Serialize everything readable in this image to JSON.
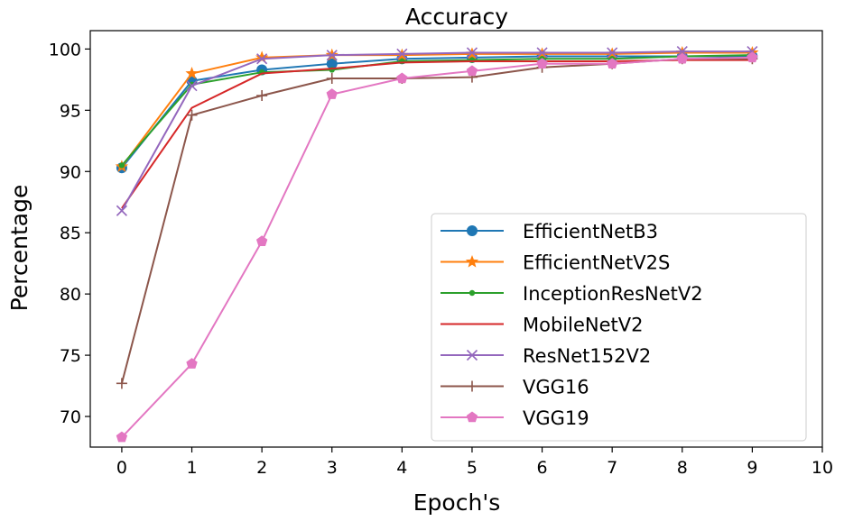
{
  "chart_data": {
    "type": "line",
    "title": "Accuracy",
    "xlabel": "Epoch's",
    "ylabel": "Percentage",
    "xlim": [
      -0.45,
      10
    ],
    "ylim": [
      67.5,
      101.5
    ],
    "x": [
      0,
      1,
      2,
      3,
      4,
      5,
      6,
      7,
      8,
      9
    ],
    "xticks": [
      0,
      1,
      2,
      3,
      4,
      5,
      6,
      7,
      8,
      9,
      10
    ],
    "yticks": [
      70,
      75,
      80,
      85,
      90,
      95,
      100
    ],
    "grid": false,
    "legend_position": "lower-right",
    "series": [
      {
        "name": "EfficientNetB3",
        "color": "#1f77b4",
        "marker": "circle",
        "values": [
          90.3,
          97.4,
          98.3,
          98.8,
          99.2,
          99.3,
          99.4,
          99.4,
          99.4,
          99.4
        ]
      },
      {
        "name": "EfficientNetV2S",
        "color": "#ff7f0e",
        "marker": "star",
        "values": [
          90.4,
          98.0,
          99.3,
          99.5,
          99.5,
          99.6,
          99.6,
          99.6,
          99.7,
          99.7
        ]
      },
      {
        "name": "InceptionResNetV2",
        "color": "#2ca02c",
        "marker": "point",
        "values": [
          90.5,
          97.1,
          98.1,
          98.3,
          99.0,
          99.1,
          99.2,
          99.2,
          99.4,
          99.5
        ]
      },
      {
        "name": "MobileNetV2",
        "color": "#d62728",
        "marker": "none",
        "values": [
          87.0,
          95.2,
          98.0,
          98.4,
          98.9,
          99.0,
          99.0,
          99.0,
          99.1,
          99.1
        ]
      },
      {
        "name": "ResNet152V2",
        "color": "#9467bd",
        "marker": "x",
        "values": [
          86.8,
          97.0,
          99.2,
          99.5,
          99.6,
          99.7,
          99.7,
          99.7,
          99.8,
          99.8
        ]
      },
      {
        "name": "VGG16",
        "color": "#8c564b",
        "marker": "plus",
        "values": [
          72.7,
          94.6,
          96.2,
          97.6,
          97.6,
          97.7,
          98.5,
          98.8,
          99.2,
          99.2
        ]
      },
      {
        "name": "VGG19",
        "color": "#e377c2",
        "marker": "pentagon",
        "values": [
          68.3,
          74.3,
          84.3,
          96.3,
          97.6,
          98.2,
          98.8,
          98.8,
          99.2,
          99.3
        ]
      }
    ]
  }
}
